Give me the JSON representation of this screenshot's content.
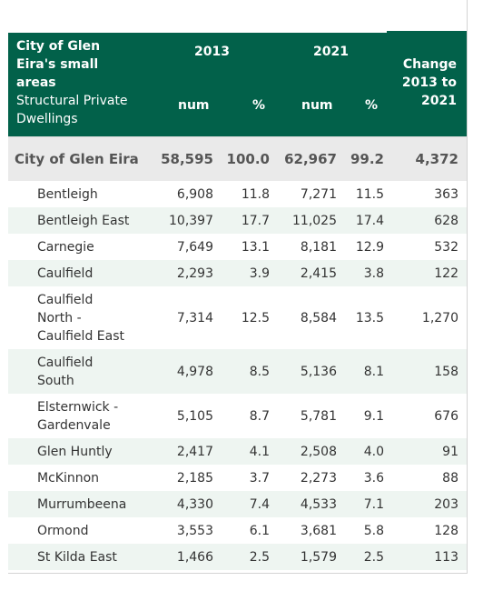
{
  "header": {
    "title_lines": [
      "City of Glen",
      "Eira's small",
      "areas"
    ],
    "subtitle_lines": [
      "Structural Private",
      "Dwellings"
    ],
    "year1": "2013",
    "year2": "2021",
    "change_lines": [
      "Change",
      "2013 to",
      "2021"
    ],
    "col_num1": "num",
    "col_pct1": "%",
    "col_num2": "num",
    "col_pct2": "%"
  },
  "total": {
    "name": "City of Glen Eira",
    "num2013": "58,595",
    "pct2013": "100.0",
    "num2021": "62,967",
    "pct2021": "99.2",
    "change": "4,372"
  },
  "rows": [
    {
      "lines": [
        "Bentleigh"
      ],
      "num2013": "6,908",
      "pct2013": "11.8",
      "num2021": "7,271",
      "pct2021": "11.5",
      "change": "363"
    },
    {
      "lines": [
        "Bentleigh East"
      ],
      "num2013": "10,397",
      "pct2013": "17.7",
      "num2021": "11,025",
      "pct2021": "17.4",
      "change": "628"
    },
    {
      "lines": [
        "Carnegie"
      ],
      "num2013": "7,649",
      "pct2013": "13.1",
      "num2021": "8,181",
      "pct2021": "12.9",
      "change": "532"
    },
    {
      "lines": [
        "Caulfield"
      ],
      "num2013": "2,293",
      "pct2013": "3.9",
      "num2021": "2,415",
      "pct2021": "3.8",
      "change": "122"
    },
    {
      "lines": [
        "Caulfield",
        "North -",
        "Caulfield East"
      ],
      "num2013": "7,314",
      "pct2013": "12.5",
      "num2021": "8,584",
      "pct2021": "13.5",
      "change": "1,270"
    },
    {
      "lines": [
        "Caulfield",
        "South"
      ],
      "num2013": "4,978",
      "pct2013": "8.5",
      "num2021": "5,136",
      "pct2021": "8.1",
      "change": "158"
    },
    {
      "lines": [
        "Elsternwick -",
        "Gardenvale"
      ],
      "num2013": "5,105",
      "pct2013": "8.7",
      "num2021": "5,781",
      "pct2021": "9.1",
      "change": "676"
    },
    {
      "lines": [
        "Glen Huntly"
      ],
      "num2013": "2,417",
      "pct2013": "4.1",
      "num2021": "2,508",
      "pct2021": "4.0",
      "change": "91"
    },
    {
      "lines": [
        "McKinnon"
      ],
      "num2013": "2,185",
      "pct2013": "3.7",
      "num2021": "2,273",
      "pct2021": "3.6",
      "change": "88"
    },
    {
      "lines": [
        "Murrumbeena"
      ],
      "num2013": "4,330",
      "pct2013": "7.4",
      "num2021": "4,533",
      "pct2021": "7.1",
      "change": "203"
    },
    {
      "lines": [
        "Ormond"
      ],
      "num2013": "3,553",
      "pct2013": "6.1",
      "num2021": "3,681",
      "pct2021": "5.8",
      "change": "128"
    },
    {
      "lines": [
        "St Kilda East"
      ],
      "num2013": "1,466",
      "pct2013": "2.5",
      "num2021": "1,579",
      "pct2021": "2.5",
      "change": "113"
    }
  ]
}
